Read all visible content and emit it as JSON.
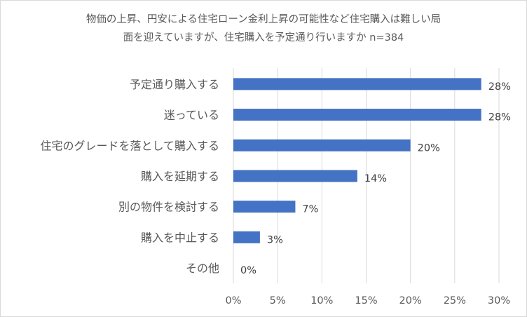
{
  "chart_data": {
    "type": "bar",
    "orientation": "horizontal",
    "title": "物価の上昇、円安による住宅ローン金利上昇の可能性など住宅購入は難しい局面を迎えていますが、住宅購入を予定通り行いますか n=384",
    "title_lines": [
      "物価の上昇、円安による住宅ローン金利上昇の可能性など住宅購入は難しい局",
      "面を迎えていますが、住宅購入を予定通り行いますか n=384"
    ],
    "categories": [
      "予定通り購入する",
      "迷っている",
      "住宅のグレードを落として購入する",
      "購入を延期する",
      "別の物件を検討する",
      "購入を中止する",
      "その他"
    ],
    "values": [
      28,
      28,
      20,
      14,
      7,
      3,
      0
    ],
    "data_labels": [
      "28%",
      "28%",
      "20%",
      "14%",
      "7%",
      "3%",
      "0%"
    ],
    "xlim": [
      0,
      30
    ],
    "x_ticks": [
      0,
      5,
      10,
      15,
      20,
      25,
      30
    ],
    "x_tick_labels": [
      "0%",
      "5%",
      "10%",
      "15%",
      "20%",
      "25%",
      "30%"
    ],
    "xlabel": "",
    "ylabel": "",
    "grid": true,
    "legend": "none",
    "bar_color": "#4472c4"
  }
}
